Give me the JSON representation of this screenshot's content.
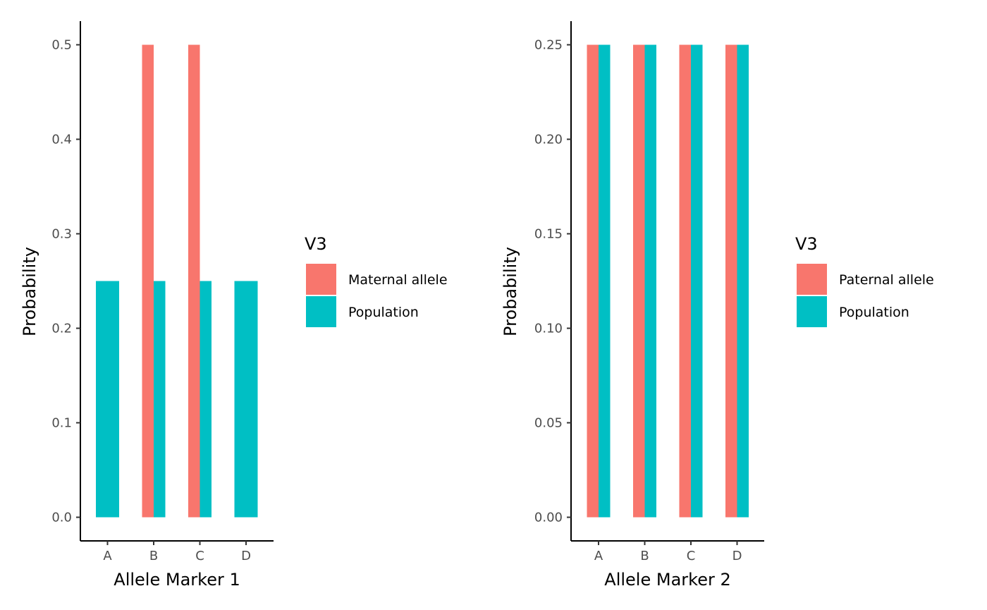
{
  "chart_data": [
    {
      "type": "bar",
      "xlabel": "Allele Marker 1",
      "ylabel": "Probability",
      "categories": [
        "A",
        "B",
        "C",
        "D"
      ],
      "ylim": [
        -0.025,
        0.525
      ],
      "yticks": [
        0.0,
        0.1,
        0.2,
        0.3,
        0.4,
        0.5
      ],
      "ytick_labels": [
        "0.0",
        "0.1",
        "0.2",
        "0.3",
        "0.4",
        "0.5"
      ],
      "grid": false,
      "legend": {
        "title": "V3",
        "placement": "right",
        "entries": [
          "Maternal allele",
          "Population"
        ]
      },
      "series": [
        {
          "name": "Maternal allele",
          "color": "#F8766D",
          "values": [
            null,
            0.5,
            0.5,
            null
          ]
        },
        {
          "name": "Population",
          "color": "#00BFC4",
          "values": [
            0.25,
            0.25,
            0.25,
            0.25
          ]
        }
      ]
    },
    {
      "type": "bar",
      "xlabel": "Allele Marker 2",
      "ylabel": "Probability",
      "categories": [
        "A",
        "B",
        "C",
        "D"
      ],
      "ylim": [
        -0.0125,
        0.2625
      ],
      "yticks": [
        0.0,
        0.05,
        0.1,
        0.15,
        0.2,
        0.25
      ],
      "ytick_labels": [
        "0.00",
        "0.05",
        "0.10",
        "0.15",
        "0.20",
        "0.25"
      ],
      "grid": false,
      "legend": {
        "title": "V3",
        "placement": "right",
        "entries": [
          "Paternal allele",
          "Population"
        ]
      },
      "series": [
        {
          "name": "Paternal allele",
          "color": "#F8766D",
          "values": [
            0.25,
            0.25,
            0.25,
            0.25
          ]
        },
        {
          "name": "Population",
          "color": "#00BFC4",
          "values": [
            0.25,
            0.25,
            0.25,
            0.25
          ]
        }
      ]
    }
  ]
}
